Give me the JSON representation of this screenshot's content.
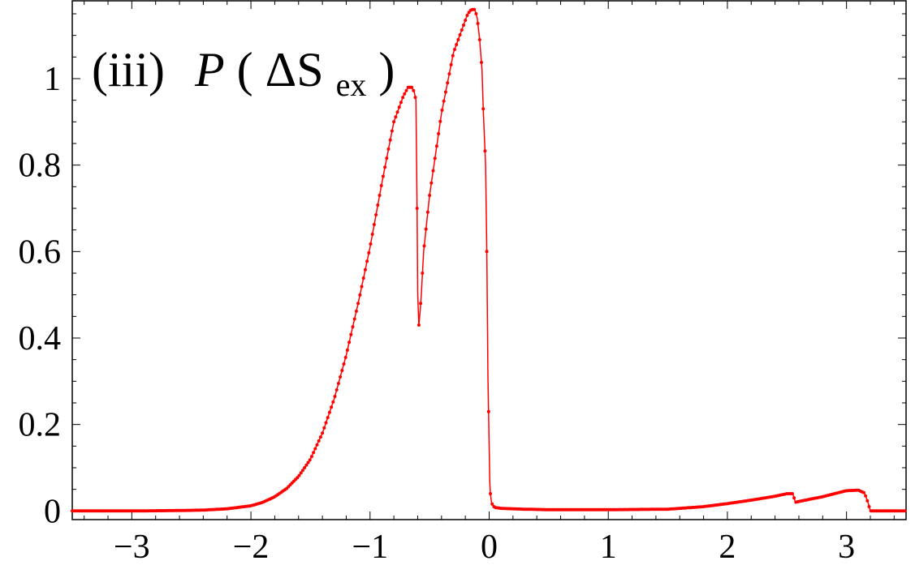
{
  "chart_data": {
    "type": "line",
    "title": "",
    "xlabel": "",
    "ylabel": "",
    "annotation": {
      "prefix": "(iii)",
      "func": "P",
      "open": "(",
      "symbol": "ΔS",
      "subscript": "ex",
      "close": ")"
    },
    "xlim": [
      -3.5,
      3.5
    ],
    "ylim": [
      -0.02,
      1.18
    ],
    "xticks": [
      -3,
      -2,
      -1,
      0,
      1,
      2,
      3
    ],
    "xtick_labels": [
      "−3",
      "−2",
      "−1",
      "0",
      "1",
      "2",
      "3"
    ],
    "yticks": [
      0,
      0.2,
      0.4,
      0.6,
      0.8,
      1
    ],
    "ytick_labels": [
      "0",
      "0.2",
      "0.4",
      "0.6",
      "0.8",
      "1"
    ],
    "grid": false,
    "legend": "none",
    "series": [
      {
        "color": "#ff0000",
        "marker": "dot",
        "x": [
          -3.5,
          -3.0,
          -2.6,
          -2.4,
          -2.2,
          -2.0,
          -1.9,
          -1.8,
          -1.7,
          -1.6,
          -1.5,
          -1.4,
          -1.3,
          -1.2,
          -1.1,
          -1.0,
          -0.9,
          -0.8,
          -0.72,
          -0.68,
          -0.65,
          -0.63,
          -0.615,
          -0.605,
          -0.6,
          -0.59,
          -0.58,
          -0.57,
          -0.55,
          -0.5,
          -0.4,
          -0.3,
          -0.22,
          -0.18,
          -0.15,
          -0.12,
          -0.1,
          -0.08,
          -0.06,
          -0.05,
          -0.03,
          -0.02,
          -0.01,
          0.0,
          0.005,
          0.01,
          0.02,
          0.03,
          0.05,
          0.1,
          0.3,
          0.5,
          1.0,
          1.5,
          1.8,
          2.0,
          2.2,
          2.4,
          2.5,
          2.55,
          2.57,
          2.6,
          2.8,
          3.0,
          3.1,
          3.15,
          3.18,
          3.2,
          3.5
        ],
        "y": [
          0.0,
          0.0,
          0.001,
          0.002,
          0.005,
          0.012,
          0.02,
          0.033,
          0.052,
          0.08,
          0.12,
          0.18,
          0.26,
          0.36,
          0.48,
          0.61,
          0.76,
          0.9,
          0.96,
          0.98,
          0.98,
          0.97,
          0.95,
          0.7,
          0.5,
          0.43,
          0.46,
          0.5,
          0.6,
          0.73,
          0.92,
          1.06,
          1.12,
          1.15,
          1.16,
          1.16,
          1.14,
          1.09,
          1.02,
          0.93,
          0.8,
          0.6,
          0.31,
          0.15,
          0.07,
          0.04,
          0.02,
          0.012,
          0.008,
          0.006,
          0.004,
          0.003,
          0.003,
          0.004,
          0.01,
          0.017,
          0.025,
          0.034,
          0.04,
          0.04,
          0.02,
          0.022,
          0.033,
          0.047,
          0.048,
          0.042,
          0.02,
          0.0,
          0.0
        ]
      }
    ]
  }
}
